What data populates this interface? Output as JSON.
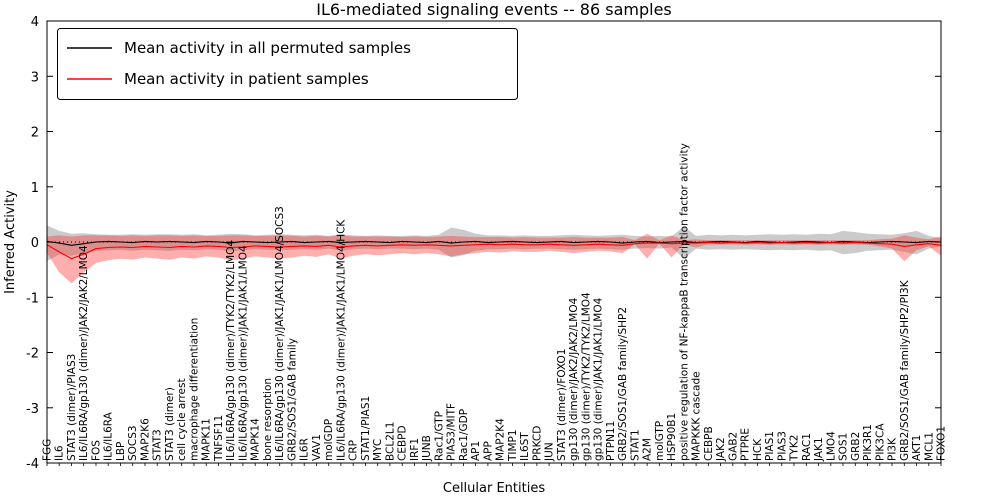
{
  "chart_data": {
    "type": "line",
    "title": "IL6-mediated signaling events -- 86 samples",
    "xlabel": "Cellular Entities",
    "ylabel": "Inferred Activity",
    "samples": 86,
    "ylim": [
      -4,
      4
    ],
    "yticks": [
      -4,
      -3,
      -2,
      -1,
      0,
      1,
      2,
      3,
      4
    ],
    "grid": false,
    "legend_position": "upper left",
    "zero_line": {
      "style": "dotted",
      "color": "#000000"
    },
    "categories": [
      "FGG",
      "IL6",
      "STAT3 (dimer)/PIAS3",
      "IL6/IL6RA/gp130 (dimer)/JAK2/JAK2/LMO4",
      "FOS",
      "IL6/IL6RA",
      "LBP",
      "SOCS3",
      "MAP2K6",
      "STAT3",
      "STAT3 (dimer)",
      "cell cycle arrest",
      "macrophage differentiation",
      "MAPK11",
      "TNFSF11",
      "IL6/IL6RA/gp130 (dimer)/TYK2/TYK2/LMO4",
      "IL6/IL6RA/gp130 (dimer)/JAK1/JAK1/LMO4",
      "MAPK14",
      "bone resorption",
      "IL6/IL6RA/gp130 (dimer)/JAK1/JAK1/LMO4/SOCS3",
      "GRB2/SOS1/GAB family",
      "IL6R",
      "VAV1",
      "molGDP",
      "IL6/IL6RA/gp130 (dimer)/JAK1/JAK1/LMO4/HCK",
      "CRP",
      "STAT1/PIAS1",
      "MYC",
      "BCL2L1",
      "CEBPD",
      "IRF1",
      "JUNB",
      "Rac1/GTP",
      "PIAS3/MITF",
      "Rac1/GDP",
      "AP1",
      "APP",
      "MAP2K4",
      "TIMP1",
      "IL6ST",
      "PRKCD",
      "JUN",
      "STAT3 (dimer)/FOXO1",
      "gp130 (dimer)/JAK2/JAK2/LMO4",
      "gp130 (dimer)/TYK2/TYK2/LMO4",
      "gp130 (dimer)/JAK1/JAK1/LMO4",
      "PTPN11",
      "GRB2/SOS1/GAB family/SHP2",
      "STAT1",
      "A2M",
      "molGTP",
      "HSP90B1",
      "positive regulation of NF-kappaB transcription factor activity",
      "MAPKKK cascade",
      "CEBPB",
      "JAK2",
      "GAB2",
      "PTPRE",
      "HCK",
      "PIAS1",
      "PIAS3",
      "TYK2",
      "RAC1",
      "JAK1",
      "LMO4",
      "SOS1",
      "GRB2",
      "PIK3R1",
      "PIK3CA",
      "PI3K",
      "GRB2/SOS1/GAB family/SHP2/PI3K",
      "AKT1",
      "MCL1",
      "FOXO1"
    ],
    "series": [
      {
        "name": "Mean activity in all permuted samples",
        "color": "#000000",
        "band_color": "#8c8c8c",
        "band_opacity": 0.45,
        "values": [
          0.01,
          -0.02,
          -0.06,
          -0.03,
          0.0,
          0.01,
          0.0,
          -0.01,
          0.01,
          0.0,
          0.01,
          0.0,
          -0.01,
          0.01,
          0.0,
          -0.02,
          0.01,
          0.0,
          -0.01,
          0.0,
          0.01,
          -0.01,
          0.0,
          0.01,
          -0.01,
          0.0,
          0.01,
          0.0,
          -0.01,
          0.01,
          0.0,
          -0.01,
          0.01,
          -0.02,
          0.0,
          0.01,
          -0.01,
          0.0,
          0.01,
          0.0,
          -0.01,
          0.0,
          0.01,
          -0.01,
          0.0,
          0.01,
          0.0,
          -0.02,
          0.0,
          0.01,
          -0.01,
          0.0,
          0.01,
          -0.01,
          0.0,
          0.01,
          0.0,
          -0.01,
          0.01,
          0.0,
          -0.01,
          0.0,
          0.01,
          0.0,
          -0.01,
          0.01,
          0.0,
          -0.01,
          0.0,
          0.01,
          0.0,
          -0.01,
          0.01,
          0.0
        ],
        "lower": [
          -0.35,
          -0.22,
          -0.25,
          -0.2,
          -0.16,
          -0.15,
          -0.14,
          -0.16,
          -0.14,
          -0.15,
          -0.16,
          -0.14,
          -0.15,
          -0.13,
          -0.14,
          -0.17,
          -0.15,
          -0.13,
          -0.14,
          -0.15,
          -0.14,
          -0.13,
          -0.14,
          -0.12,
          -0.16,
          -0.13,
          -0.12,
          -0.13,
          -0.12,
          -0.12,
          -0.13,
          -0.12,
          -0.14,
          -0.28,
          -0.24,
          -0.16,
          -0.13,
          -0.13,
          -0.12,
          -0.13,
          -0.12,
          -0.12,
          -0.13,
          -0.14,
          -0.13,
          -0.12,
          -0.13,
          -0.14,
          -0.12,
          -0.11,
          -0.12,
          -0.1,
          -0.3,
          -0.12,
          -0.14,
          -0.13,
          -0.14,
          -0.13,
          -0.14,
          -0.15,
          -0.14,
          -0.15,
          -0.14,
          -0.16,
          -0.15,
          -0.22,
          -0.2,
          -0.16,
          -0.15,
          -0.14,
          -0.18,
          -0.22,
          -0.12,
          -0.08
        ],
        "upper": [
          0.3,
          0.2,
          0.15,
          0.16,
          0.14,
          0.13,
          0.13,
          0.14,
          0.13,
          0.14,
          0.14,
          0.13,
          0.14,
          0.12,
          0.13,
          0.15,
          0.14,
          0.12,
          0.13,
          0.14,
          0.13,
          0.12,
          0.13,
          0.11,
          0.14,
          0.12,
          0.11,
          0.12,
          0.11,
          0.11,
          0.12,
          0.11,
          0.13,
          0.26,
          0.22,
          0.15,
          0.12,
          0.12,
          0.11,
          0.12,
          0.11,
          0.11,
          0.12,
          0.13,
          0.12,
          0.11,
          0.12,
          0.13,
          0.11,
          0.1,
          0.11,
          0.1,
          0.28,
          0.11,
          0.13,
          0.12,
          0.13,
          0.12,
          0.13,
          0.14,
          0.13,
          0.14,
          0.13,
          0.15,
          0.14,
          0.2,
          0.18,
          0.15,
          0.14,
          0.13,
          0.16,
          0.2,
          0.11,
          0.07
        ]
      },
      {
        "name": "Mean activity in patient samples",
        "color": "#ff0000",
        "band_color": "#ff2a2a",
        "band_opacity": 0.38,
        "values": [
          -0.05,
          -0.18,
          -0.3,
          -0.22,
          -0.12,
          -0.1,
          -0.09,
          -0.1,
          -0.08,
          -0.09,
          -0.1,
          -0.08,
          -0.09,
          -0.07,
          -0.08,
          -0.1,
          -0.09,
          -0.07,
          -0.08,
          -0.09,
          -0.08,
          -0.07,
          -0.08,
          -0.06,
          -0.09,
          -0.07,
          -0.06,
          -0.07,
          -0.06,
          -0.05,
          -0.06,
          -0.05,
          -0.06,
          -0.07,
          -0.06,
          -0.05,
          -0.04,
          -0.05,
          -0.04,
          -0.05,
          -0.05,
          -0.04,
          -0.05,
          -0.06,
          -0.05,
          -0.04,
          -0.05,
          -0.06,
          -0.03,
          -0.02,
          -0.02,
          -0.03,
          -0.02,
          -0.02,
          -0.01,
          -0.02,
          -0.01,
          -0.02,
          -0.01,
          -0.02,
          -0.01,
          -0.02,
          -0.01,
          -0.02,
          -0.01,
          -0.02,
          -0.01,
          -0.02,
          -0.03,
          -0.04,
          -0.08,
          -0.05,
          -0.03,
          -0.06
        ],
        "lower": [
          -0.2,
          -0.55,
          -0.75,
          -0.55,
          -0.38,
          -0.33,
          -0.3,
          -0.32,
          -0.28,
          -0.3,
          -0.32,
          -0.28,
          -0.3,
          -0.26,
          -0.28,
          -0.33,
          -0.3,
          -0.26,
          -0.28,
          -0.3,
          -0.28,
          -0.25,
          -0.27,
          -0.22,
          -0.3,
          -0.25,
          -0.22,
          -0.24,
          -0.22,
          -0.2,
          -0.22,
          -0.2,
          -0.22,
          -0.26,
          -0.22,
          -0.2,
          -0.18,
          -0.19,
          -0.17,
          -0.18,
          -0.18,
          -0.16,
          -0.18,
          -0.2,
          -0.18,
          -0.16,
          -0.17,
          -0.2,
          -0.04,
          -0.3,
          -0.03,
          -0.28,
          -0.04,
          -0.1,
          -0.04,
          -0.05,
          -0.04,
          -0.05,
          -0.04,
          -0.05,
          -0.04,
          -0.05,
          -0.04,
          -0.05,
          -0.04,
          -0.05,
          -0.04,
          -0.05,
          -0.08,
          -0.12,
          -0.35,
          -0.15,
          -0.08,
          -0.25
        ],
        "upper": [
          0.1,
          0.12,
          0.1,
          0.12,
          0.12,
          0.12,
          0.11,
          0.12,
          0.11,
          0.12,
          0.12,
          0.11,
          0.12,
          0.11,
          0.11,
          0.12,
          0.12,
          0.11,
          0.11,
          0.12,
          0.11,
          0.1,
          0.11,
          0.1,
          0.12,
          0.1,
          0.1,
          0.1,
          0.1,
          0.09,
          0.1,
          0.09,
          0.1,
          0.11,
          0.1,
          0.09,
          0.09,
          0.09,
          0.08,
          0.09,
          0.08,
          0.08,
          0.08,
          0.09,
          0.08,
          0.08,
          0.08,
          0.09,
          0.03,
          0.15,
          0.03,
          0.12,
          0.03,
          0.05,
          0.03,
          0.03,
          0.03,
          0.03,
          0.03,
          0.03,
          0.03,
          0.03,
          0.03,
          0.03,
          0.03,
          0.03,
          0.03,
          0.03,
          0.05,
          0.06,
          0.12,
          0.08,
          0.05,
          0.1
        ]
      }
    ]
  }
}
